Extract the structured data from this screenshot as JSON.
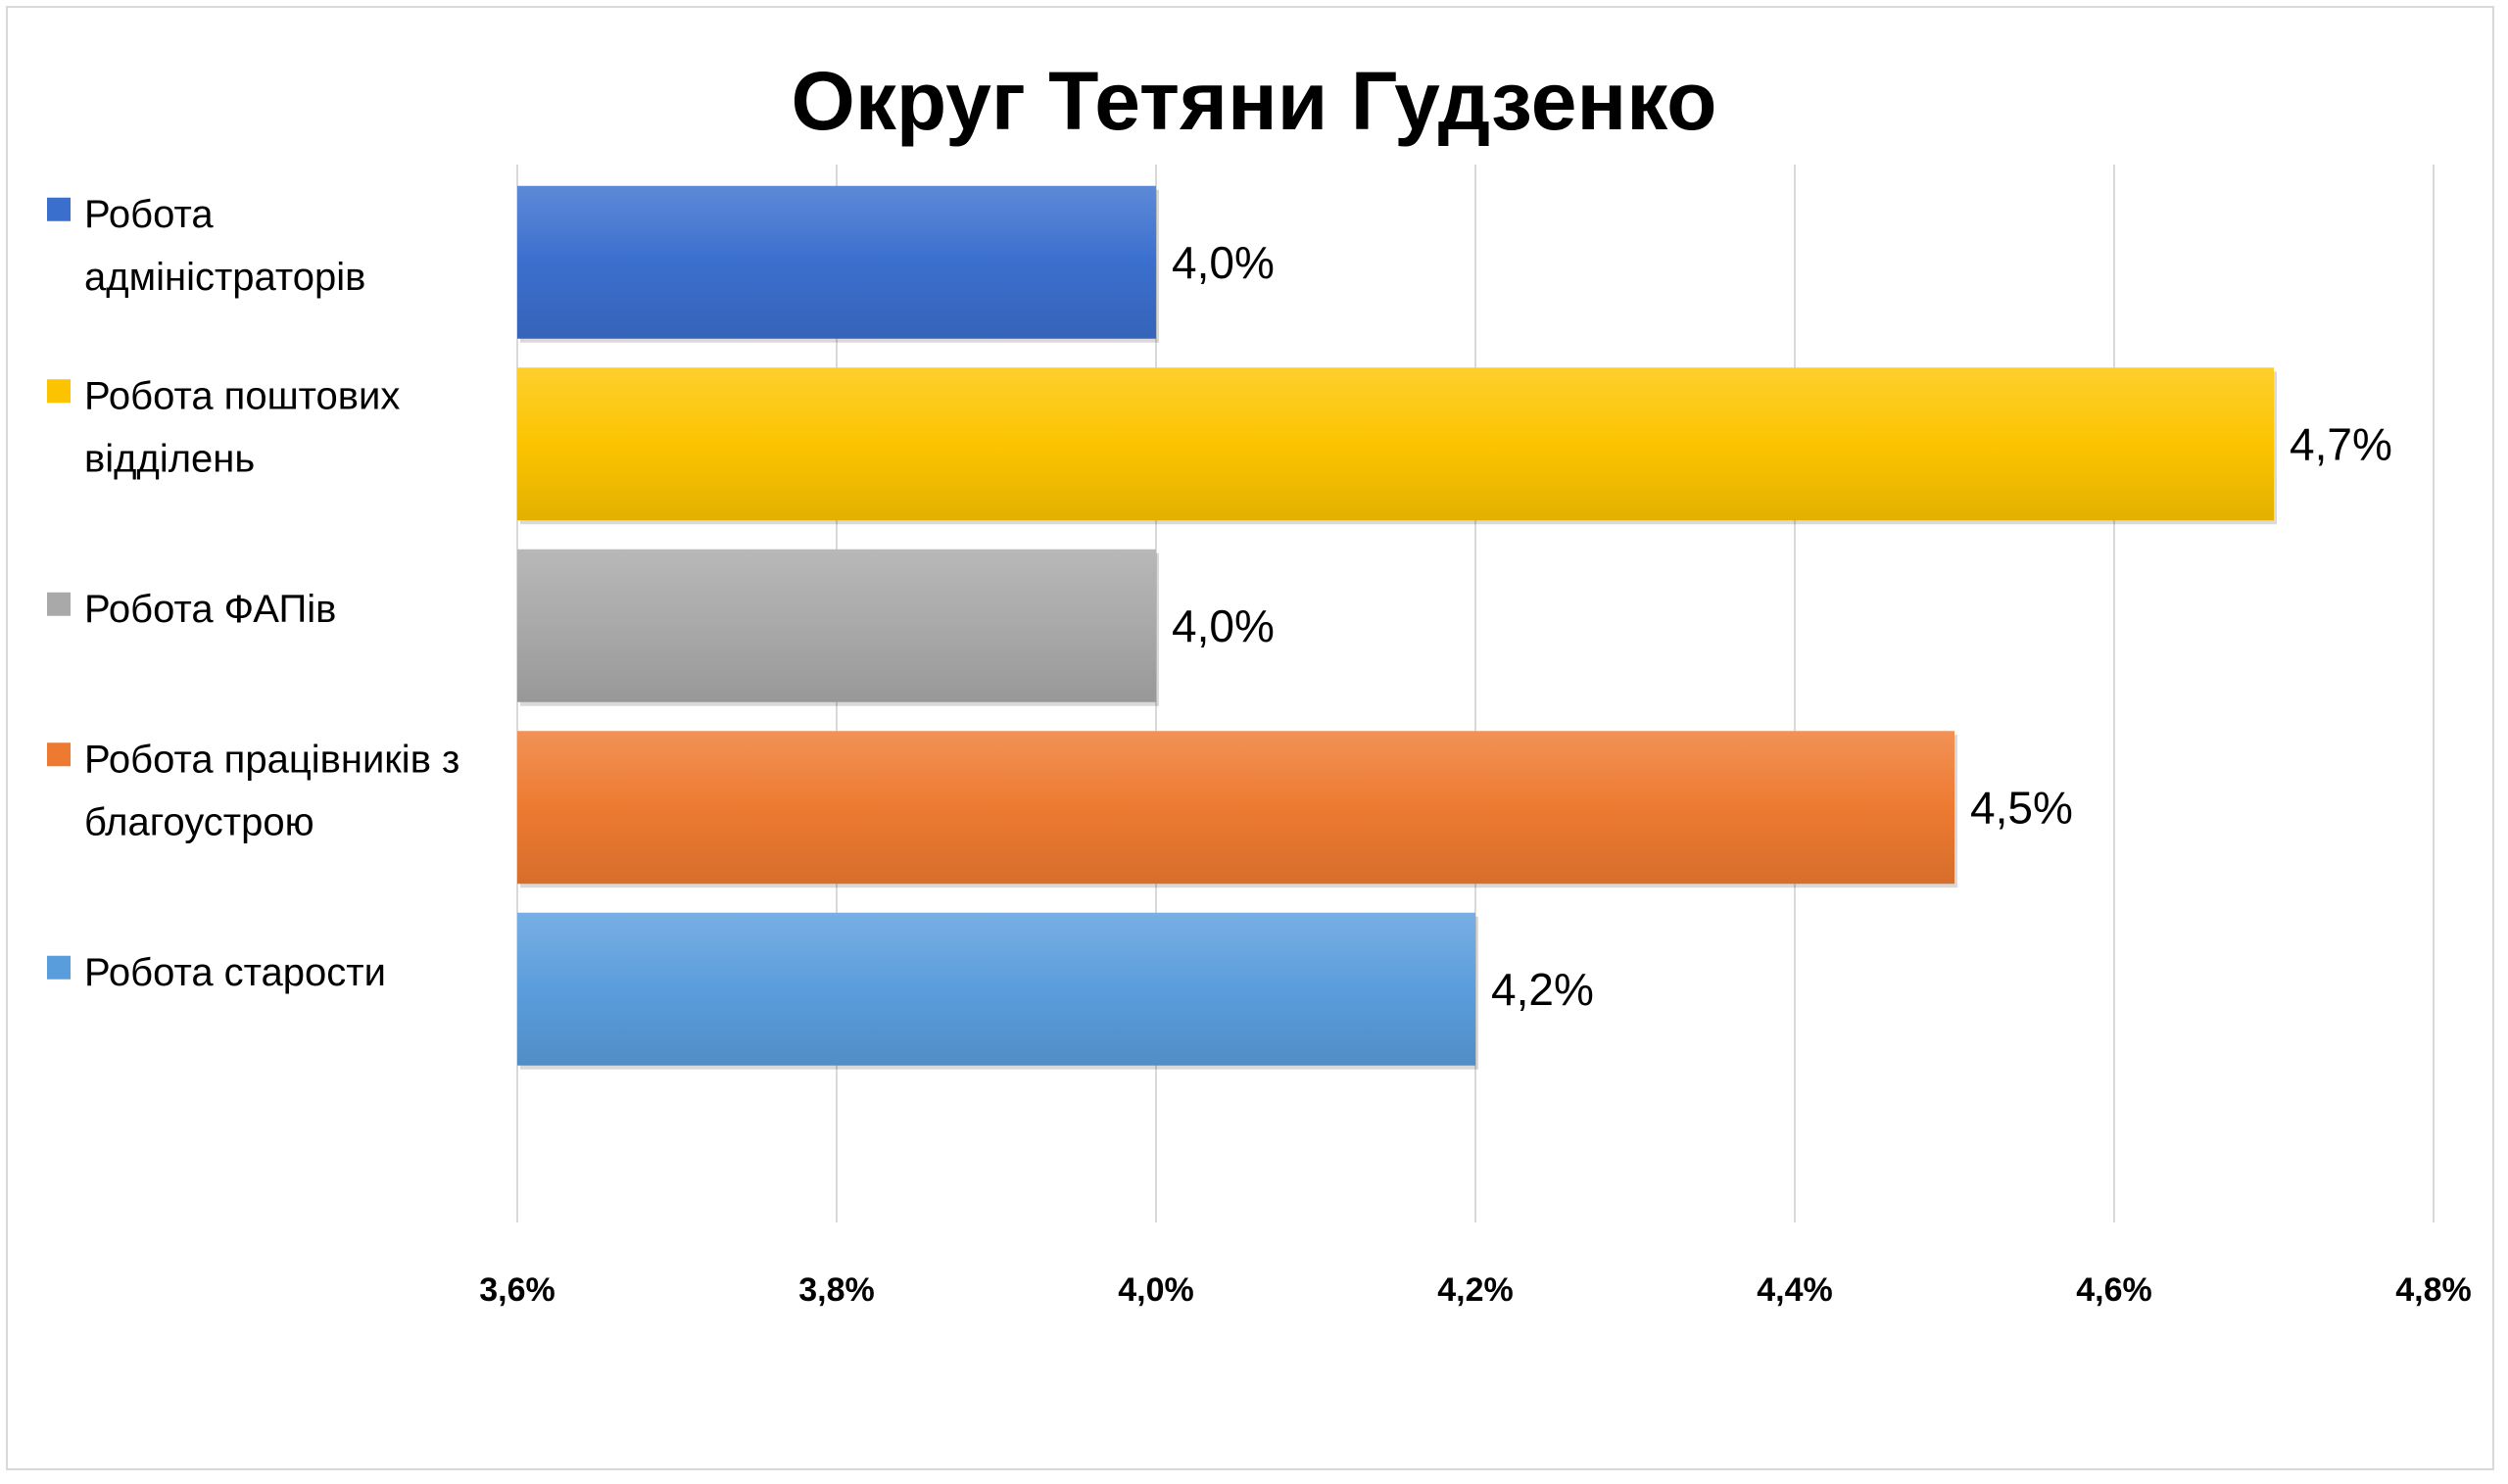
{
  "chart_data": {
    "type": "bar",
    "orientation": "horizontal",
    "title": "Округ Тетяни Гудзенко",
    "xlabel": "",
    "ylabel": "",
    "xlim": [
      3.6,
      4.8
    ],
    "xticks": [
      3.6,
      3.8,
      4.0,
      4.2,
      4.4,
      4.6,
      4.8
    ],
    "xtick_labels": [
      "3,6%",
      "3,8%",
      "4,0%",
      "4,2%",
      "4,4%",
      "4,6%",
      "4,8%"
    ],
    "grid": true,
    "legend_position": "left",
    "series": [
      {
        "name": "Робота адміністраторів",
        "legend_lines": [
          "Робота",
          "адміністраторів"
        ],
        "value": 4.0,
        "label": "4,0%",
        "color": "#3b6fce"
      },
      {
        "name": "Робота поштових відділень",
        "legend_lines": [
          "Робота поштових",
          "відділень"
        ],
        "value": 4.7,
        "label": "4,7%",
        "color": "#fcc400"
      },
      {
        "name": "Робота ФАПів",
        "legend_lines": [
          "Робота ФАПів"
        ],
        "value": 4.0,
        "label": "4,0%",
        "color": "#a9a9a9"
      },
      {
        "name": "Робота працівників з благоустрою",
        "legend_lines": [
          "Робота працівників з",
          "благоустрою"
        ],
        "value": 4.5,
        "label": "4,5%",
        "color": "#ee7a31"
      },
      {
        "name": "Робота старости",
        "legend_lines": [
          "Робота старости"
        ],
        "value": 4.2,
        "label": "4,2%",
        "color": "#5a9ddd"
      }
    ]
  }
}
